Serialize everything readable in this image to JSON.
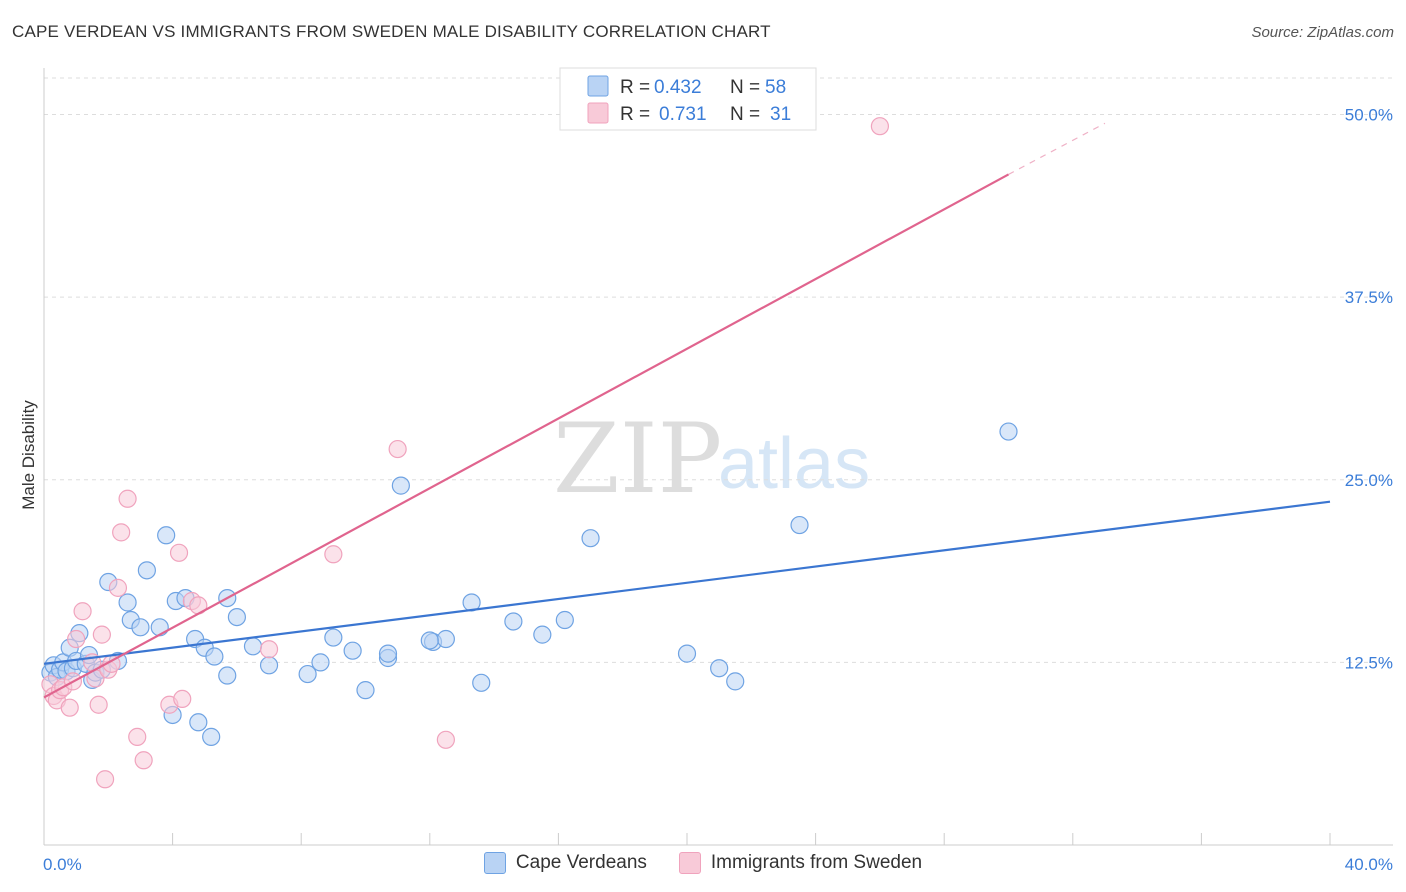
{
  "title": "CAPE VERDEAN VS IMMIGRANTS FROM SWEDEN MALE DISABILITY CORRELATION CHART",
  "source": "Source: ZipAtlas.com",
  "watermark": {
    "zip": "ZIP",
    "atlas": "atlas"
  },
  "chart_data": {
    "type": "scatter",
    "xlabel": "",
    "ylabel": "Male Disability",
    "xlim": [
      0,
      40
    ],
    "ylim": [
      0,
      52.5
    ],
    "x_tick_labels": {
      "left": "0.0%",
      "right": "40.0%"
    },
    "y_ticks": [
      {
        "value": 12.5,
        "label": "12.5%"
      },
      {
        "value": 25.0,
        "label": "25.0%"
      },
      {
        "value": 37.5,
        "label": "37.5%"
      },
      {
        "value": 50.0,
        "label": "50.0%"
      }
    ],
    "legend": {
      "rows": [
        {
          "r_label": "R =",
          "r_value": "0.432",
          "n_label": "N =",
          "n_value": "58"
        },
        {
          "r_label": "R =",
          "r_value": "0.731",
          "n_label": "N =",
          "n_value": "31"
        }
      ]
    },
    "series": [
      {
        "name": "Cape Verdeans",
        "color": "#6fa3e3",
        "fill": "#b9d3f4",
        "line_color": "#3b76d1",
        "trend": {
          "x0": 0,
          "y0": 12.4,
          "x1": 40,
          "y1": 23.5
        },
        "points": [
          [
            0.2,
            11.8
          ],
          [
            0.3,
            12.3
          ],
          [
            0.4,
            11.5
          ],
          [
            0.5,
            12.0
          ],
          [
            0.6,
            12.5
          ],
          [
            0.7,
            11.9
          ],
          [
            0.8,
            13.5
          ],
          [
            0.9,
            12.1
          ],
          [
            1.0,
            12.6
          ],
          [
            1.1,
            14.5
          ],
          [
            1.3,
            12.4
          ],
          [
            1.4,
            13.0
          ],
          [
            1.5,
            11.3
          ],
          [
            1.6,
            11.8
          ],
          [
            1.8,
            12.0
          ],
          [
            2.0,
            18.0
          ],
          [
            2.3,
            12.6
          ],
          [
            2.6,
            16.6
          ],
          [
            2.7,
            15.4
          ],
          [
            3.0,
            14.9
          ],
          [
            3.2,
            18.8
          ],
          [
            3.6,
            14.9
          ],
          [
            3.8,
            21.2
          ],
          [
            4.1,
            16.7
          ],
          [
            4.0,
            8.9
          ],
          [
            4.4,
            16.9
          ],
          [
            4.7,
            14.1
          ],
          [
            4.8,
            8.4
          ],
          [
            5.0,
            13.5
          ],
          [
            5.2,
            7.4
          ],
          [
            5.7,
            16.9
          ],
          [
            5.3,
            12.9
          ],
          [
            5.7,
            11.6
          ],
          [
            6.0,
            15.6
          ],
          [
            6.5,
            13.6
          ],
          [
            7.0,
            12.3
          ],
          [
            8.2,
            11.7
          ],
          [
            8.6,
            12.5
          ],
          [
            9.0,
            14.2
          ],
          [
            9.6,
            13.3
          ],
          [
            10.0,
            10.6
          ],
          [
            10.7,
            12.8
          ],
          [
            10.7,
            13.1
          ],
          [
            11.1,
            24.6
          ],
          [
            12.1,
            13.9
          ],
          [
            12.5,
            14.1
          ],
          [
            13.3,
            16.6
          ],
          [
            13.6,
            11.1
          ],
          [
            14.6,
            15.3
          ],
          [
            15.5,
            14.4
          ],
          [
            16.2,
            15.4
          ],
          [
            17.0,
            21.0
          ],
          [
            20.0,
            13.1
          ],
          [
            21.0,
            12.1
          ],
          [
            21.5,
            11.2
          ],
          [
            23.5,
            21.9
          ],
          [
            30.0,
            28.3
          ],
          [
            12.0,
            14.0
          ]
        ]
      },
      {
        "name": "Immigrants from Sweden",
        "color": "#f0a3bd",
        "fill": "#f8cad8",
        "line_color": "#e0648e",
        "trend": {
          "x0": 0,
          "y0": 10.1,
          "x1": 30.0,
          "y1": 45.9
        },
        "trend_dashed": {
          "x0": 30.0,
          "y0": 45.9,
          "x1": 33.0,
          "y1": 49.4
        },
        "points": [
          [
            0.2,
            11.0
          ],
          [
            0.3,
            10.2
          ],
          [
            0.4,
            9.9
          ],
          [
            0.5,
            10.6
          ],
          [
            0.6,
            10.8
          ],
          [
            0.8,
            9.4
          ],
          [
            0.9,
            11.2
          ],
          [
            1.0,
            14.1
          ],
          [
            1.2,
            16.0
          ],
          [
            1.5,
            12.5
          ],
          [
            1.6,
            11.4
          ],
          [
            1.7,
            9.6
          ],
          [
            1.8,
            14.4
          ],
          [
            1.9,
            4.5
          ],
          [
            2.0,
            12.0
          ],
          [
            2.3,
            17.6
          ],
          [
            2.4,
            21.4
          ],
          [
            2.6,
            23.7
          ],
          [
            2.9,
            7.4
          ],
          [
            3.1,
            5.8
          ],
          [
            3.9,
            9.6
          ],
          [
            4.2,
            20.0
          ],
          [
            4.3,
            10.0
          ],
          [
            4.6,
            16.7
          ],
          [
            4.8,
            16.4
          ],
          [
            7.0,
            13.4
          ],
          [
            9.0,
            19.9
          ],
          [
            11.0,
            27.1
          ],
          [
            12.5,
            7.2
          ],
          [
            26.0,
            49.2
          ],
          [
            2.1,
            12.4
          ]
        ]
      }
    ]
  }
}
